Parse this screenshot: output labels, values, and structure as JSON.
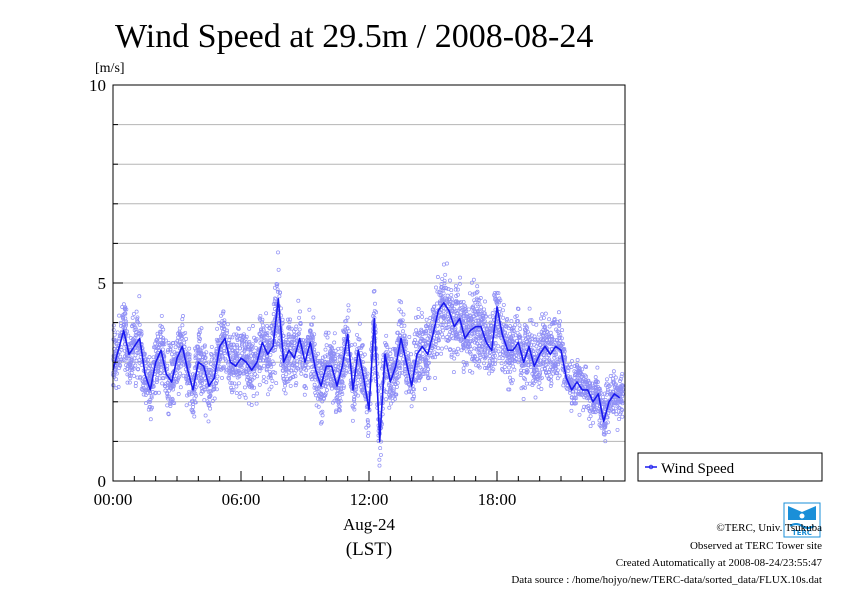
{
  "chart_data": {
    "type": "scatter",
    "title": "Wind Speed at 29.5m / 2008-08-24",
    "ylabel": "[m/s]",
    "xlabel": "Aug-24",
    "xlabel_sub": "(LST)",
    "xlim": [
      0,
      24
    ],
    "ylim": [
      0,
      10
    ],
    "x_ticks": [
      {
        "value": 0,
        "label": "00:00"
      },
      {
        "value": 6,
        "label": "06:00"
      },
      {
        "value": 12,
        "label": "12:00"
      },
      {
        "value": 18,
        "label": "18:00"
      }
    ],
    "y_ticks": [
      {
        "value": 0,
        "label": "0"
      },
      {
        "value": 5,
        "label": "5"
      },
      {
        "value": 10,
        "label": "10"
      }
    ],
    "grid": true,
    "legend_position": "right-bottom-outside",
    "series": [
      {
        "name": "Wind Speed",
        "kind": "line",
        "color": "#1a1aee",
        "x_hours": [
          0.0,
          0.25,
          0.5,
          0.75,
          1.0,
          1.25,
          1.5,
          1.75,
          2.0,
          2.25,
          2.5,
          2.75,
          3.0,
          3.25,
          3.5,
          3.75,
          4.0,
          4.25,
          4.5,
          4.75,
          5.0,
          5.25,
          5.5,
          5.75,
          6.0,
          6.25,
          6.5,
          6.75,
          7.0,
          7.25,
          7.5,
          7.75,
          8.0,
          8.25,
          8.5,
          8.75,
          9.0,
          9.25,
          9.5,
          9.75,
          10.0,
          10.25,
          10.5,
          10.75,
          11.0,
          11.25,
          11.5,
          11.75,
          12.0,
          12.25,
          12.5,
          12.75,
          13.0,
          13.25,
          13.5,
          13.75,
          14.0,
          14.25,
          14.5,
          14.75,
          15.0,
          15.25,
          15.5,
          15.75,
          16.0,
          16.25,
          16.5,
          16.75,
          17.0,
          17.25,
          17.5,
          17.75,
          18.0,
          18.25,
          18.5,
          18.75,
          19.0,
          19.25,
          19.5,
          19.75,
          20.0,
          20.25,
          20.5,
          20.75,
          21.0,
          21.25,
          21.5,
          21.75,
          22.0,
          22.25,
          22.5,
          22.75,
          23.0,
          23.25,
          23.5,
          23.75
        ],
        "values": [
          2.8,
          3.3,
          3.8,
          3.2,
          3.4,
          3.6,
          2.7,
          2.3,
          3.0,
          3.3,
          2.7,
          2.5,
          3.1,
          3.4,
          2.8,
          2.3,
          3.0,
          2.9,
          2.4,
          2.6,
          3.4,
          3.6,
          3.0,
          2.9,
          3.1,
          3.0,
          2.8,
          3.0,
          3.5,
          3.2,
          3.4,
          4.6,
          3.0,
          3.3,
          3.1,
          3.6,
          3.0,
          3.5,
          2.8,
          2.4,
          2.9,
          2.9,
          2.4,
          2.9,
          3.7,
          2.3,
          3.3,
          2.6,
          1.8,
          4.1,
          1.0,
          3.2,
          2.5,
          2.9,
          3.6,
          3.0,
          2.4,
          3.2,
          3.4,
          3.2,
          3.7,
          4.3,
          4.5,
          4.3,
          3.9,
          4.1,
          3.6,
          3.8,
          3.9,
          3.9,
          3.5,
          3.3,
          4.4,
          3.7,
          3.3,
          3.3,
          3.5,
          3.0,
          3.4,
          2.9,
          3.2,
          3.4,
          3.2,
          3.4,
          3.3,
          2.6,
          2.3,
          2.5,
          2.3,
          2.3,
          2.0,
          2.2,
          1.5,
          2.0,
          2.2,
          2.1
        ],
        "range": [
          3.0,
          3.0,
          3.4,
          3.4,
          3.4,
          3.4,
          3.4,
          3.4
        ]
      }
    ],
    "scatter_note": "light blue open-circle 10-second samples scattered around the line"
  },
  "credits": {
    "copyright": "©TERC, Univ. Tsukuba",
    "observed": "Observed at TERC Tower site",
    "created": "Created Automatically at 2008-08-24/23:55:47",
    "source": "Data source : /home/hojyo/new/TERC-data/sorted_data/FLUX.10s.dat"
  },
  "logo": {
    "text": "TERC",
    "color": "#1a8fd8"
  },
  "colors": {
    "line": "#1a1aee",
    "points": "#8f8ff5",
    "grid": "#b5b5b5"
  }
}
